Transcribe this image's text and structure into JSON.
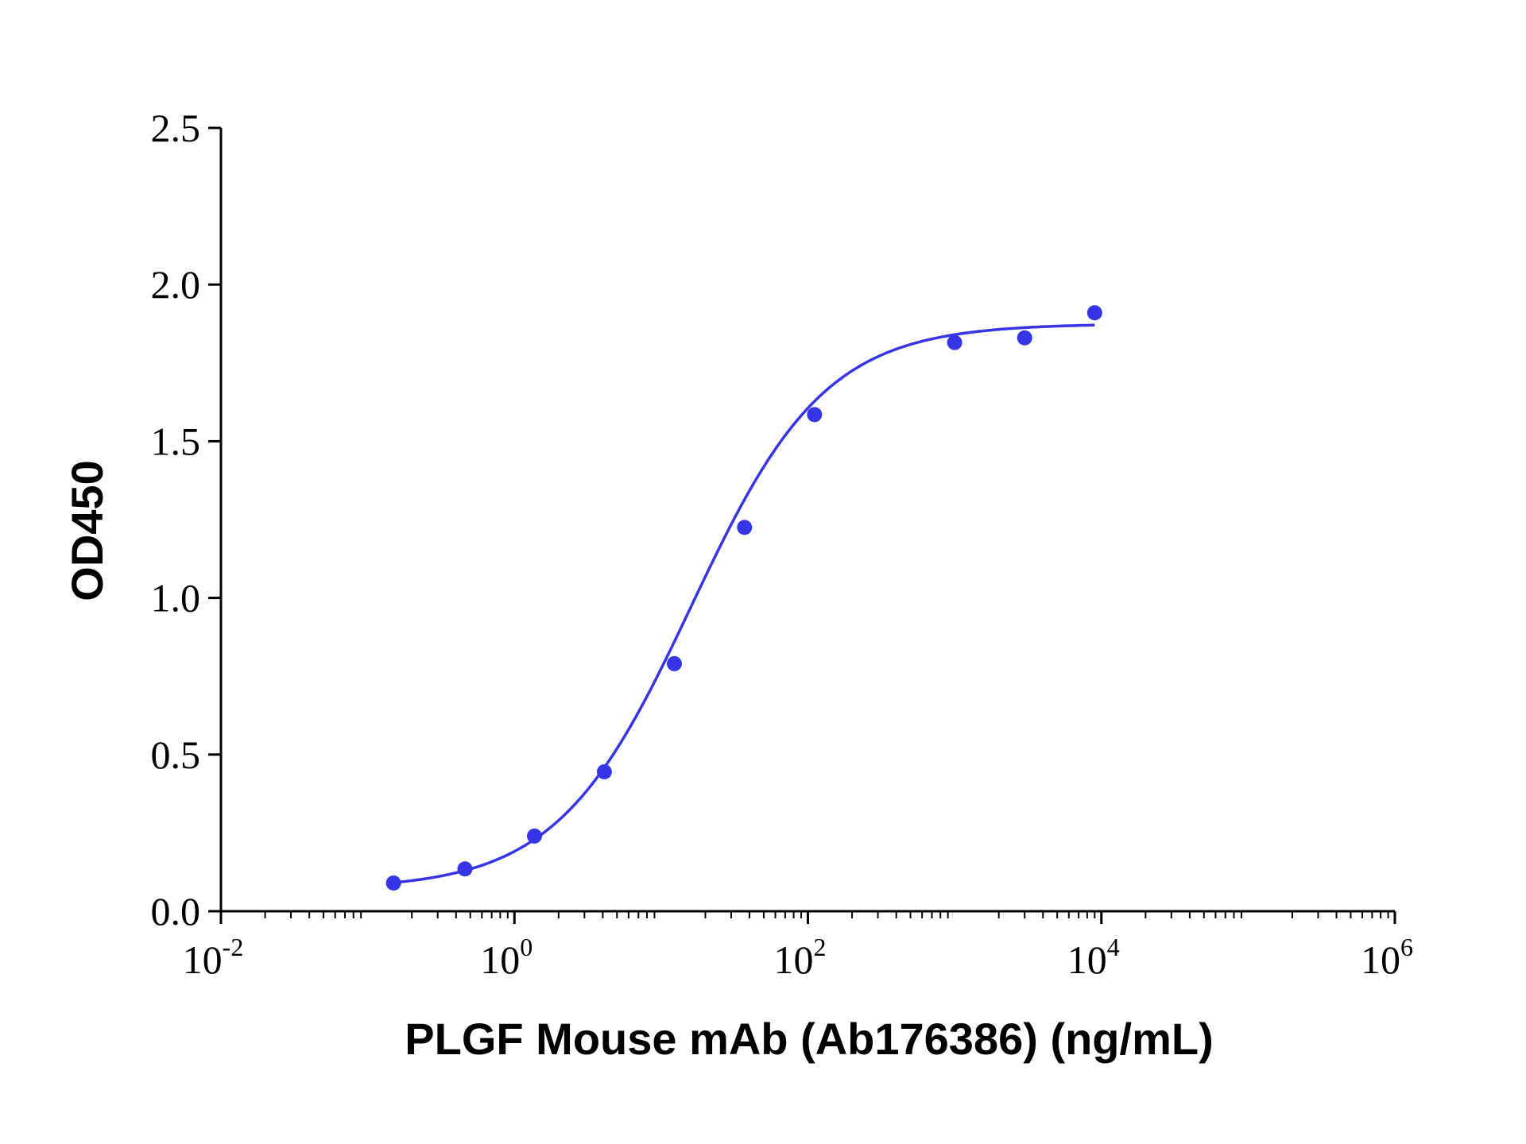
{
  "chart_data": {
    "type": "scatter",
    "xlabel": "PLGF Mouse mAb (Ab176386) (ng/mL)",
    "ylabel": "OD450",
    "x_scale": "log",
    "xlim": [
      0.01,
      1000000
    ],
    "ylim": [
      0,
      2.5
    ],
    "x_ticks": [
      {
        "base": "10",
        "exp": "-2"
      },
      {
        "base": "10",
        "exp": "0"
      },
      {
        "base": "10",
        "exp": "2"
      },
      {
        "base": "10",
        "exp": "4"
      },
      {
        "base": "10",
        "exp": "6"
      }
    ],
    "y_ticks": [
      "0.0",
      "0.5",
      "1.0",
      "1.5",
      "2.0",
      "2.5"
    ],
    "grid": false,
    "series": [
      {
        "color": "#3535e6",
        "points": [
          {
            "x": 0.15,
            "y": 0.09
          },
          {
            "x": 0.46,
            "y": 0.135
          },
          {
            "x": 1.37,
            "y": 0.24
          },
          {
            "x": 4.1,
            "y": 0.445
          },
          {
            "x": 12.3,
            "y": 0.79
          },
          {
            "x": 37,
            "y": 1.225
          },
          {
            "x": 111,
            "y": 1.585
          },
          {
            "x": 1000,
            "y": 1.815
          },
          {
            "x": 3000,
            "y": 1.83
          },
          {
            "x": 9000,
            "y": 1.91
          }
        ],
        "fit": {
          "model": "4PL",
          "bottom": 0.07,
          "top": 1.875,
          "ec50": 16,
          "hill": 0.95,
          "x_range": [
            0.15,
            9000
          ]
        }
      }
    ]
  }
}
